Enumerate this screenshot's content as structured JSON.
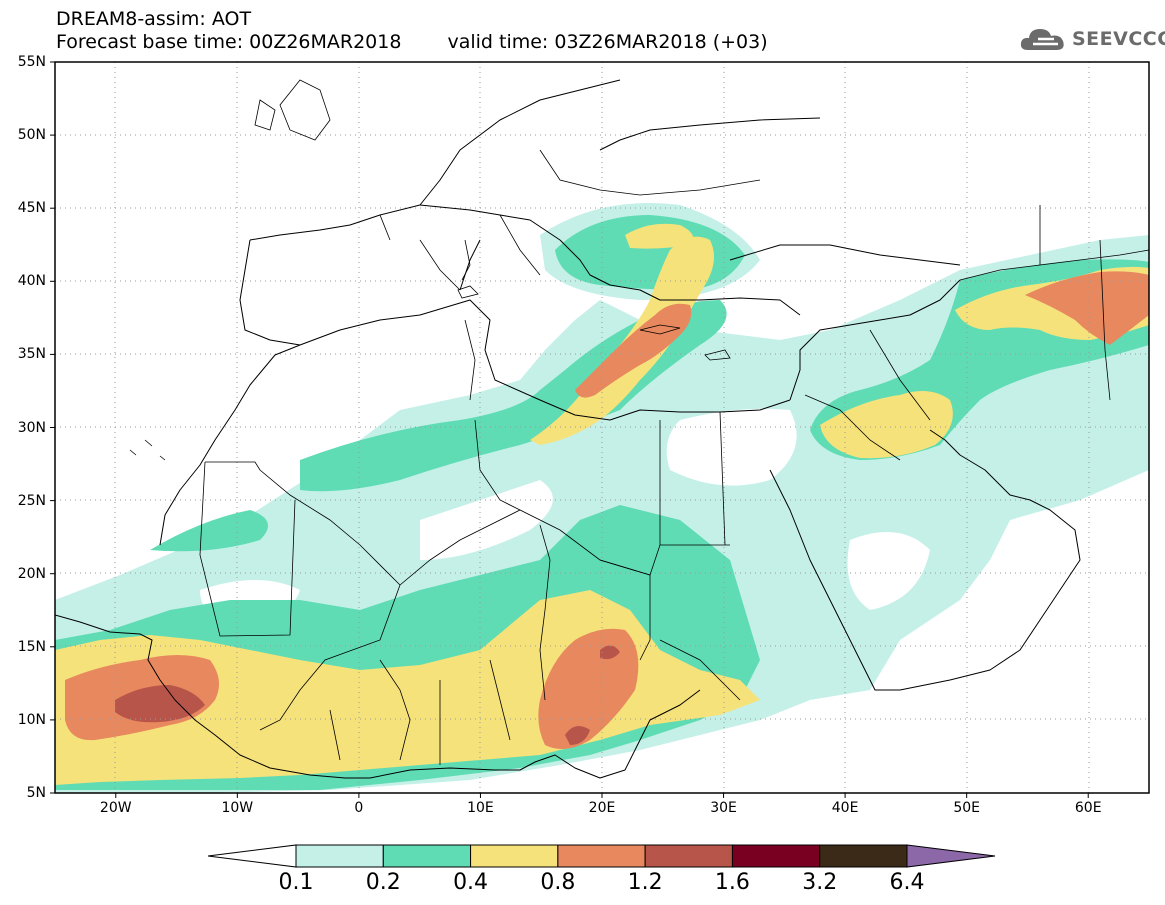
{
  "header": {
    "title": "DREAM8-assim: AOT",
    "base_time": "Forecast base time: 00Z26MAR2018",
    "valid_time": "valid time: 03Z26MAR2018 (+03)"
  },
  "logo": {
    "text": "SEEVCCC",
    "icon": "cloud-icon"
  },
  "map": {
    "lon_range": [
      -25,
      65
    ],
    "lat_range": [
      5,
      55
    ],
    "lat_labels": [
      "55N",
      "50N",
      "45N",
      "40N",
      "35N",
      "30N",
      "25N",
      "20N",
      "15N",
      "10N",
      "5N"
    ],
    "lon_labels": [
      "20W",
      "10W",
      "0",
      "10E",
      "20E",
      "30E",
      "40E",
      "50E",
      "60E"
    ],
    "gridlines": "dotted"
  },
  "colorbar": {
    "labels": [
      "0.1",
      "0.2",
      "0.4",
      "0.8",
      "1.2",
      "1.6",
      "3.2",
      "6.4"
    ],
    "colors": [
      "#ffffff",
      "#c4f0e8",
      "#5fdcb4",
      "#f6e27a",
      "#e8885e",
      "#b8554a",
      "#7a0022",
      "#3c2a18",
      "#8c68a8"
    ]
  }
}
